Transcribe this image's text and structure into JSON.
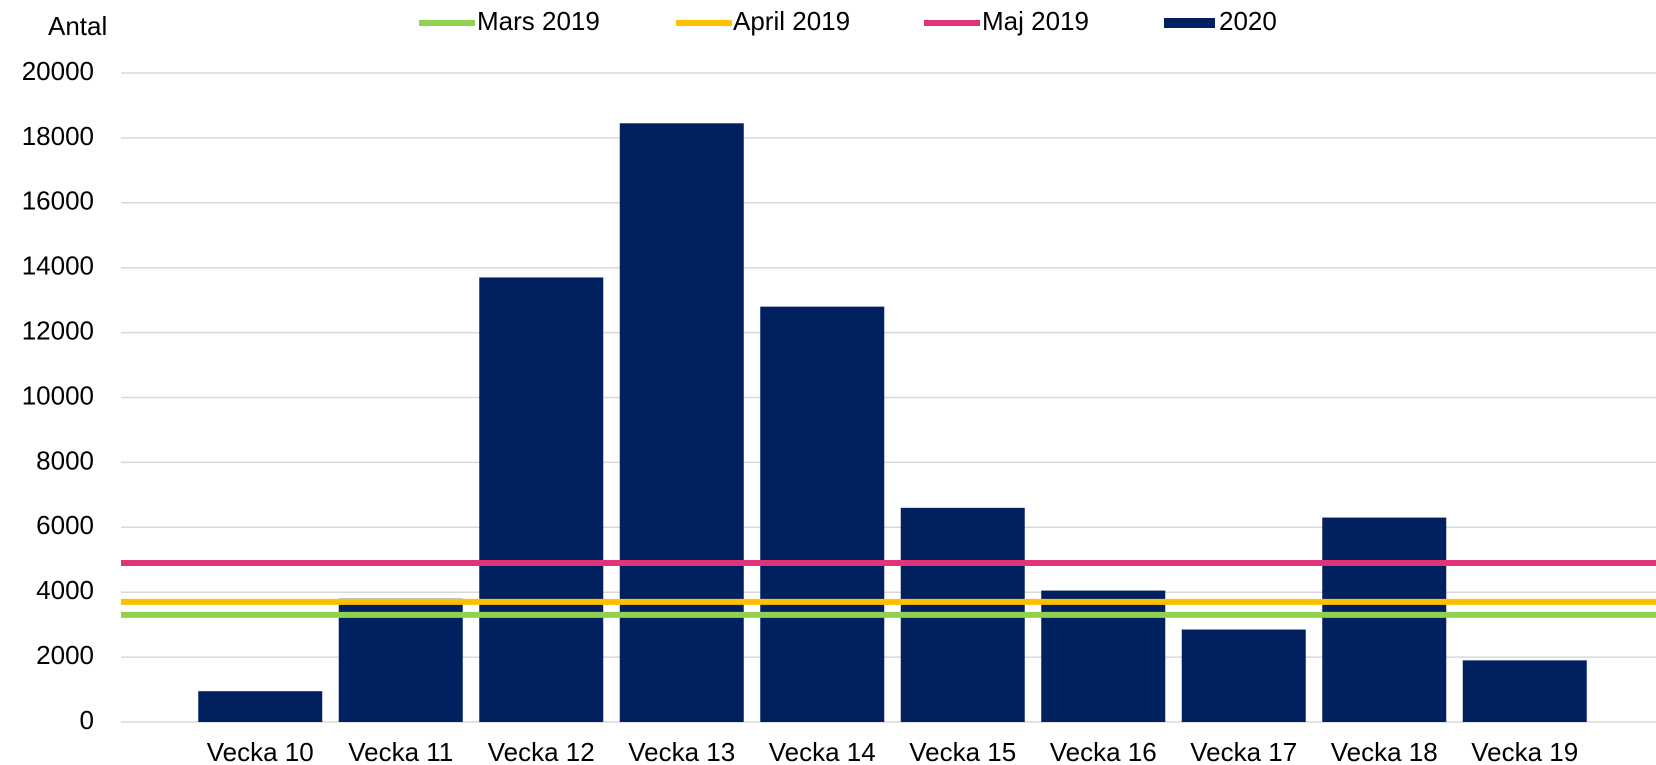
{
  "chart_data": {
    "type": "bar",
    "y_label": "Antal",
    "categories": [
      "Vecka 10",
      "Vecka 11",
      "Vecka 12",
      "Vecka 13",
      "Vecka 14",
      "Vecka 15",
      "Vecka 16",
      "Vecka 17",
      "Vecka 18",
      "Vecka 19"
    ],
    "series": [
      {
        "name": "2020",
        "color": "#002060",
        "values": [
          950,
          3800,
          13700,
          18450,
          12800,
          6600,
          4050,
          2850,
          6300,
          1900
        ]
      }
    ],
    "reference_lines": [
      {
        "name": "Mars 2019",
        "color": "#92d050",
        "value": 3300
      },
      {
        "name": "April 2019",
        "color": "#ffc000",
        "value": 3700
      },
      {
        "name": "Maj 2019",
        "color": "#e0337a",
        "value": 4900
      }
    ],
    "ylim": [
      0,
      20000
    ],
    "yticks": [
      0,
      2000,
      4000,
      6000,
      8000,
      10000,
      12000,
      14000,
      16000,
      18000,
      20000
    ],
    "grid": true,
    "legend": "top"
  }
}
